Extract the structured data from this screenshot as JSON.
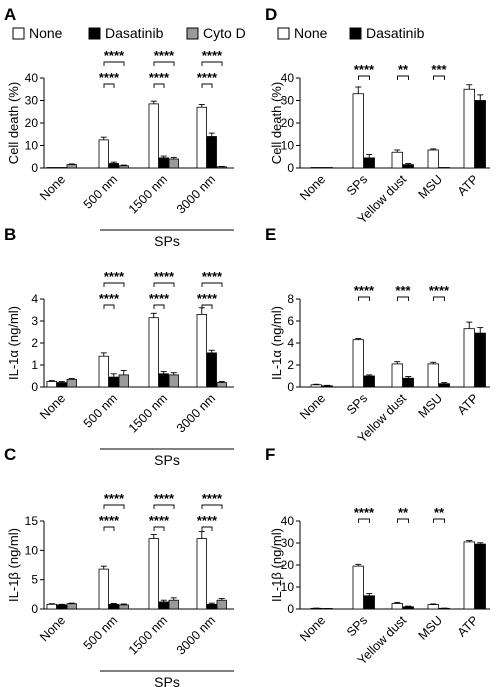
{
  "figure": {
    "legend_left": [
      {
        "label": "None",
        "color": "#ffffff"
      },
      {
        "label": "Dasatinib",
        "color": "#000000"
      },
      {
        "label": "Cyto D",
        "color": "#9a9a9a"
      }
    ],
    "legend_right": [
      {
        "label": "None",
        "color": "#ffffff"
      },
      {
        "label": "Dasatinib",
        "color": "#000000"
      }
    ]
  },
  "chart_data": [
    {
      "panel": "A",
      "type": "bar",
      "ylabel": "Cell death (%)",
      "ylim": [
        0,
        40
      ],
      "yticks": [
        0,
        10,
        20,
        30,
        40
      ],
      "categories": [
        "None",
        "500 nm",
        "1500 nm",
        "3000 nm"
      ],
      "group_label": "SPs",
      "series": [
        {
          "name": "None",
          "values": [
            0,
            12.5,
            28.5,
            27
          ],
          "errors": [
            0,
            1.2,
            1.2,
            1.2
          ]
        },
        {
          "name": "Dasatinib",
          "values": [
            0,
            2,
            4.5,
            14
          ],
          "errors": [
            0,
            0.6,
            0.8,
            1.5
          ]
        },
        {
          "name": "Cyto D",
          "values": [
            1.5,
            1,
            4,
            0.5
          ],
          "errors": [
            0.3,
            0.3,
            0.7,
            0.2
          ]
        }
      ],
      "sig_upper": [
        "****",
        "****",
        "****"
      ],
      "sig_lower": [
        "****",
        "****",
        "****"
      ]
    },
    {
      "panel": "B",
      "type": "bar",
      "ylabel": "IL-1α (ng/ml)",
      "ylim": [
        0,
        4
      ],
      "yticks": [
        0,
        1,
        2,
        3,
        4
      ],
      "categories": [
        "None",
        "500 nm",
        "1500 nm",
        "3000 nm"
      ],
      "group_label": "SPs",
      "series": [
        {
          "name": "None",
          "values": [
            0.25,
            1.4,
            3.15,
            3.3
          ],
          "errors": [
            0.04,
            0.15,
            0.2,
            0.3
          ]
        },
        {
          "name": "Dasatinib",
          "values": [
            0.2,
            0.45,
            0.6,
            1.55
          ],
          "errors": [
            0.05,
            0.15,
            0.1,
            0.12
          ]
        },
        {
          "name": "Cyto D",
          "values": [
            0.35,
            0.55,
            0.55,
            0.2
          ],
          "errors": [
            0.04,
            0.2,
            0.1,
            0.05
          ]
        }
      ],
      "sig_upper": [
        "****",
        "****",
        "****"
      ],
      "sig_lower": [
        "****",
        "****",
        "****"
      ]
    },
    {
      "panel": "C",
      "type": "bar",
      "ylabel": "IL-1β (ng/ml)",
      "ylim": [
        0,
        15
      ],
      "yticks": [
        0,
        5,
        10,
        15
      ],
      "categories": [
        "None",
        "500 nm",
        "1500 nm",
        "3000 nm"
      ],
      "group_label": "SPs",
      "series": [
        {
          "name": "None",
          "values": [
            0.8,
            6.8,
            12,
            12
          ],
          "errors": [
            0.1,
            0.5,
            0.7,
            1.2
          ]
        },
        {
          "name": "Dasatinib",
          "values": [
            0.7,
            0.8,
            1.2,
            0.8
          ],
          "errors": [
            0.1,
            0.15,
            0.3,
            0.2
          ]
        },
        {
          "name": "Cyto D",
          "values": [
            0.9,
            0.7,
            1.5,
            1.5
          ],
          "errors": [
            0.1,
            0.15,
            0.4,
            0.3
          ]
        }
      ],
      "sig_upper": [
        "****",
        "****",
        "****"
      ],
      "sig_lower": [
        "****",
        "****",
        "****"
      ]
    },
    {
      "panel": "D",
      "type": "bar",
      "ylabel": "Cell death (%)",
      "ylim": [
        0,
        40
      ],
      "yticks": [
        0,
        10,
        20,
        30,
        40
      ],
      "categories": [
        "None",
        "SPs",
        "Yellow dust",
        "MSU",
        "ATP"
      ],
      "series": [
        {
          "name": "None",
          "values": [
            0,
            33,
            7,
            8,
            35
          ],
          "errors": [
            0,
            3,
            1,
            0.5,
            2
          ]
        },
        {
          "name": "Dasatinib",
          "values": [
            0,
            4.5,
            1.5,
            0,
            30
          ],
          "errors": [
            0,
            1.5,
            0.5,
            0,
            2.5
          ]
        }
      ],
      "sig": [
        "",
        "****",
        "**",
        "***",
        ""
      ]
    },
    {
      "panel": "E",
      "type": "bar",
      "ylabel": "IL-1α (ng/ml)",
      "ylim": [
        0,
        8
      ],
      "yticks": [
        0,
        2,
        4,
        6,
        8
      ],
      "categories": [
        "None",
        "SPs",
        "Yellow dust",
        "MSU",
        "ATP"
      ],
      "series": [
        {
          "name": "None",
          "values": [
            0.2,
            4.3,
            2.1,
            2.1,
            5.3
          ],
          "errors": [
            0.05,
            0.1,
            0.2,
            0.15,
            0.6
          ]
        },
        {
          "name": "Dasatinib",
          "values": [
            0.1,
            1.0,
            0.8,
            0.3,
            4.9
          ],
          "errors": [
            0.05,
            0.1,
            0.15,
            0.1,
            0.5
          ]
        }
      ],
      "sig": [
        "",
        "****",
        "***",
        "****",
        ""
      ]
    },
    {
      "panel": "F",
      "type": "bar",
      "ylabel": "IL-1β (ng/ml)",
      "ylim": [
        0,
        40
      ],
      "yticks": [
        0,
        10,
        20,
        30,
        40
      ],
      "categories": [
        "None",
        "SPs",
        "Yellow dust",
        "MSU",
        "ATP"
      ],
      "series": [
        {
          "name": "None",
          "values": [
            0.3,
            19.5,
            2.5,
            2,
            30.5
          ],
          "errors": [
            0.1,
            0.8,
            0.5,
            0.3,
            0.6
          ]
        },
        {
          "name": "Dasatinib",
          "values": [
            0.1,
            6,
            1,
            0.3,
            29.5
          ],
          "errors": [
            0.05,
            1,
            0.3,
            0.1,
            0.6
          ]
        }
      ],
      "sig": [
        "",
        "****",
        "**",
        "**",
        ""
      ]
    }
  ]
}
